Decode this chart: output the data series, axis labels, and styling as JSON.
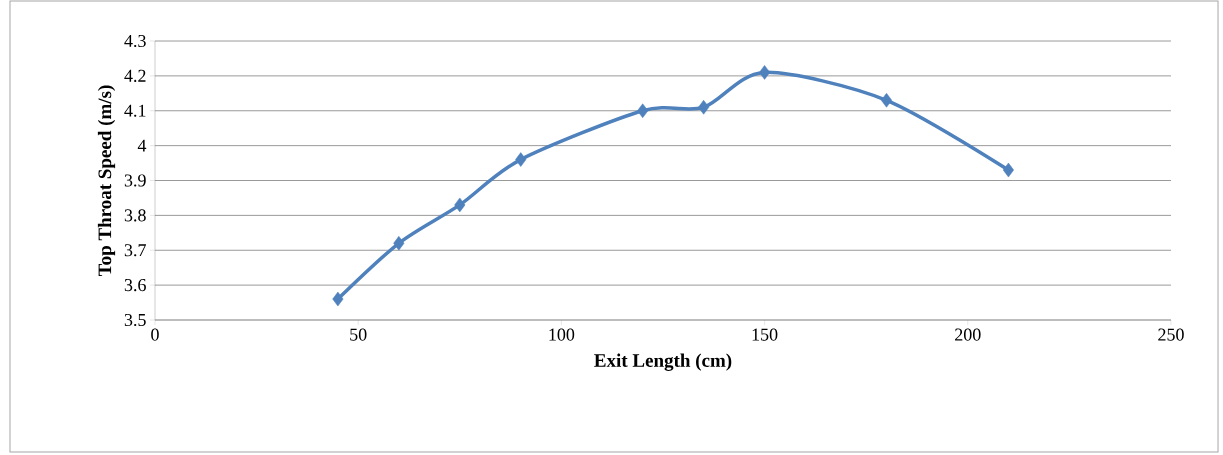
{
  "chart_data": {
    "type": "line",
    "xlabel": "Exit Length (cm)",
    "ylabel": "Top Throat Speed (m/s)",
    "x": [
      45,
      60,
      75,
      90,
      120,
      135,
      150,
      180,
      210
    ],
    "values": [
      3.56,
      3.72,
      3.83,
      3.96,
      4.1,
      4.11,
      4.21,
      4.13,
      3.93
    ],
    "color": "#4f81bd",
    "marker": "diamond",
    "line_style": "solid",
    "grid": "y",
    "xlim": [
      0,
      250
    ],
    "xticks": [
      0,
      50,
      100,
      150,
      200,
      250
    ],
    "ylim": [
      3.5,
      4.3
    ],
    "yticks": [
      3.5,
      3.6,
      3.7,
      3.8,
      3.9,
      4,
      4.1,
      4.2,
      4.3
    ]
  }
}
